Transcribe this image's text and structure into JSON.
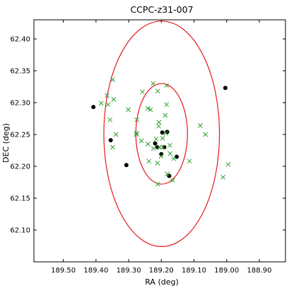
{
  "chart_data": {
    "type": "scatter",
    "title": "CCPC-z31-007",
    "xlabel": "RA (deg)",
    "ylabel": "DEC (deg)",
    "xlim": [
      189.59,
      188.82
    ],
    "ylim": [
      62.05,
      62.43
    ],
    "x_reversed": true,
    "grid": false,
    "x_ticks": [
      189.5,
      189.4,
      189.3,
      189.2,
      189.1,
      189.0,
      188.9
    ],
    "x_tick_labels": [
      "189.50",
      "189.40",
      "189.30",
      "189.20",
      "189.10",
      "189.00",
      "188.90"
    ],
    "y_ticks": [
      62.1,
      62.15,
      62.2,
      62.25,
      62.3,
      62.35,
      62.4
    ],
    "y_tick_labels": [
      "62.10",
      "62.15",
      "62.20",
      "62.25",
      "62.30",
      "62.35",
      "62.40"
    ],
    "circles": [
      {
        "center": [
          189.199,
          62.251
        ],
        "radius": 0.079,
        "color": "#e41a1c"
      },
      {
        "center": [
          189.199,
          62.251
        ],
        "radius": 0.177,
        "color": "#e41a1c"
      }
    ],
    "series": [
      {
        "marker": "circle",
        "color": "#000000",
        "points": [
          [
            189.408,
            62.293
          ],
          [
            189.355,
            62.241
          ],
          [
            189.307,
            62.202
          ],
          [
            189.219,
            62.236
          ],
          [
            189.212,
            62.23
          ],
          [
            189.197,
            62.253
          ],
          [
            189.182,
            62.254
          ],
          [
            189.191,
            62.23
          ],
          [
            189.2,
            62.219
          ],
          [
            189.176,
            62.185
          ],
          [
            189.153,
            62.215
          ],
          [
            189.004,
            62.323
          ]
        ]
      },
      {
        "marker": "x",
        "color": "#2ca02c",
        "points": [
          [
            189.349,
            62.336
          ],
          [
            189.366,
            62.311
          ],
          [
            189.384,
            62.299
          ],
          [
            189.363,
            62.297
          ],
          [
            189.357,
            62.273
          ],
          [
            189.346,
            62.305
          ],
          [
            189.301,
            62.289
          ],
          [
            189.275,
            62.273
          ],
          [
            189.258,
            62.317
          ],
          [
            189.233,
            62.289
          ],
          [
            189.241,
            62.291
          ],
          [
            189.211,
            62.318
          ],
          [
            189.225,
            62.33
          ],
          [
            189.184,
            62.327
          ],
          [
            189.184,
            62.297
          ],
          [
            189.188,
            62.28
          ],
          [
            189.207,
            62.269
          ],
          [
            189.208,
            62.263
          ],
          [
            189.186,
            62.252
          ],
          [
            189.224,
            62.228
          ],
          [
            189.241,
            62.235
          ],
          [
            189.206,
            62.23
          ],
          [
            189.196,
            62.23
          ],
          [
            189.174,
            62.233
          ],
          [
            189.216,
            62.243
          ],
          [
            189.196,
            62.244
          ],
          [
            189.276,
            62.252
          ],
          [
            189.276,
            62.25
          ],
          [
            189.349,
            62.23
          ],
          [
            189.339,
            62.25
          ],
          [
            189.261,
            62.24
          ],
          [
            189.238,
            62.208
          ],
          [
            189.212,
            62.205
          ],
          [
            189.201,
            62.216
          ],
          [
            189.162,
            62.212
          ],
          [
            189.173,
            62.22
          ],
          [
            189.182,
            62.188
          ],
          [
            189.165,
            62.178
          ],
          [
            189.114,
            62.208
          ],
          [
            189.211,
            62.172
          ],
          [
            189.081,
            62.264
          ],
          [
            189.065,
            62.25
          ],
          [
            189.011,
            62.183
          ],
          [
            188.995,
            62.203
          ]
        ]
      }
    ]
  }
}
